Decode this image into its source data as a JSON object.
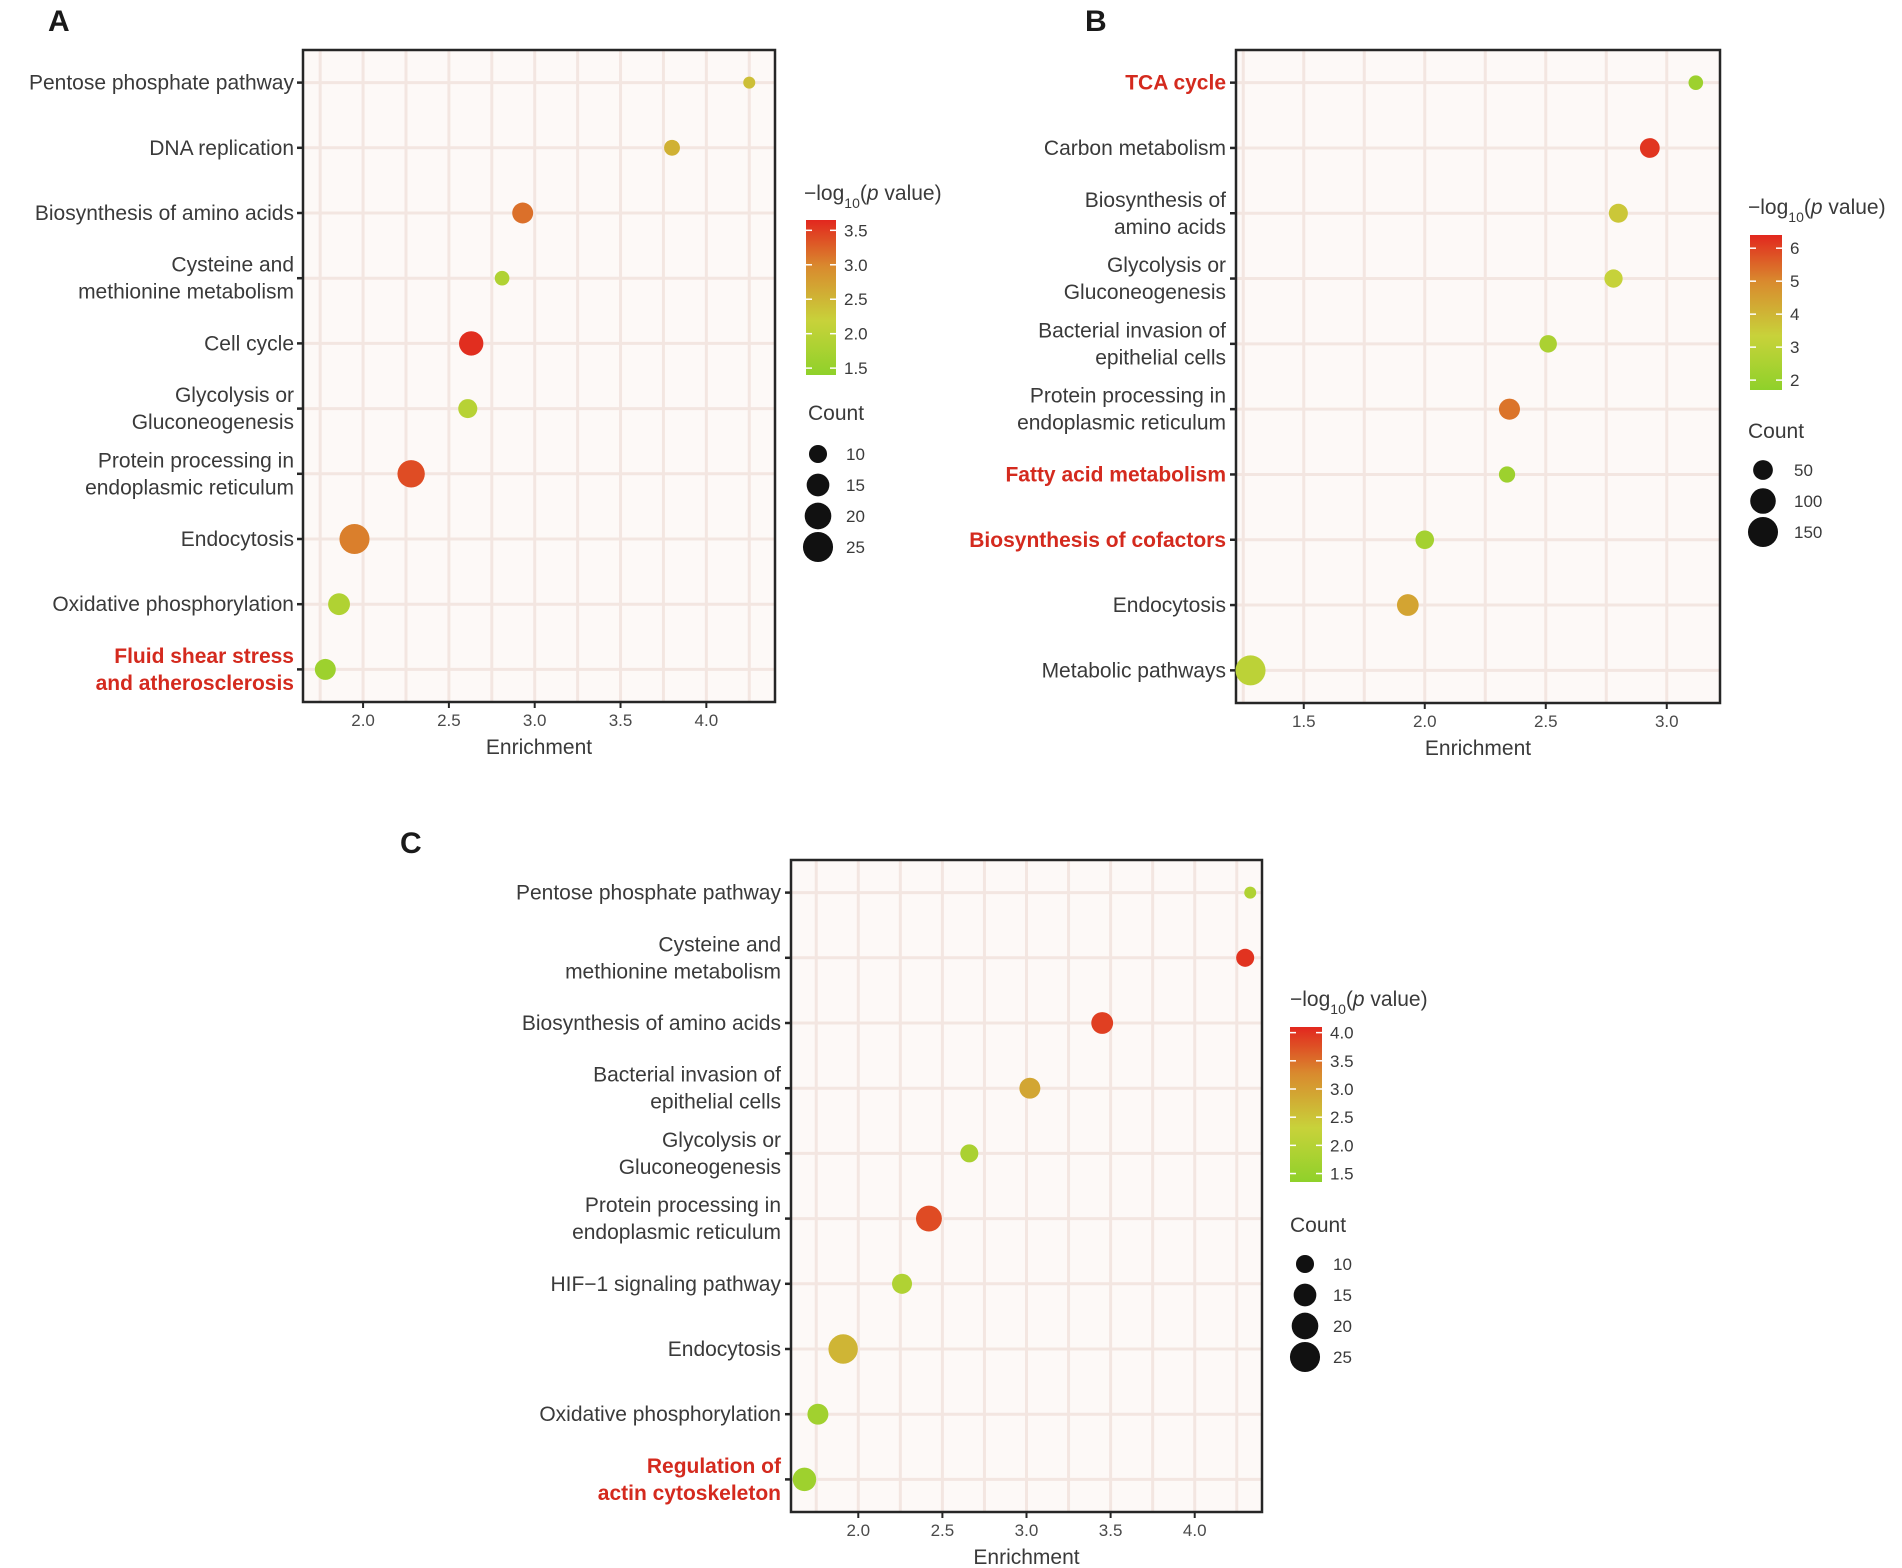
{
  "colors": {
    "panel_bg": "#fdf9f7",
    "grid": "#f3e6e1",
    "frame": "#262626",
    "highlight_text": "#d42a1e",
    "gradient_low": "#8fd12a",
    "gradient_mid_low": "#c8d23a",
    "gradient_mid_high": "#d98a2e",
    "gradient_high": "#e2271e",
    "count_marker": "#111111"
  },
  "chart_data": [
    {
      "panel": "A",
      "type": "scatter",
      "xlabel": "Enrichment",
      "xlim": [
        1.65,
        4.4
      ],
      "xticks": [
        2.0,
        2.5,
        3.0,
        3.5,
        4.0
      ],
      "xtick_labels": [
        "2.0",
        "2.5",
        "3.0",
        "3.5",
        "4.0"
      ],
      "color_legend": {
        "title_prefix": "−log",
        "title_sub": "10",
        "title_open": "(",
        "title_p": "p",
        "title_suffix": " value)",
        "range": [
          1.4,
          3.65
        ],
        "ticks": [
          1.5,
          2.0,
          2.5,
          3.0,
          3.5
        ],
        "labels": [
          "1.5",
          "2.0",
          "2.5",
          "3.0",
          "3.5"
        ]
      },
      "size_legend": {
        "title": "Count",
        "title_bold": true,
        "range": [
          5,
          28
        ],
        "values": [
          10,
          15,
          20,
          25
        ],
        "labels": [
          "10",
          "15",
          "20",
          "25"
        ]
      },
      "terms": [
        {
          "label": [
            "Pentose phosphate pathway"
          ],
          "enrichment": 4.25,
          "neg_log10_p": 2.4,
          "count": 5,
          "highlight": false
        },
        {
          "label": [
            "DNA replication"
          ],
          "enrichment": 3.8,
          "neg_log10_p": 2.55,
          "count": 8,
          "highlight": false
        },
        {
          "label": [
            "Biosynthesis of amino acids"
          ],
          "enrichment": 2.93,
          "neg_log10_p": 3.15,
          "count": 13,
          "highlight": false
        },
        {
          "label": [
            "Cysteine and",
            "methionine metabolism"
          ],
          "enrichment": 2.81,
          "neg_log10_p": 1.85,
          "count": 7,
          "highlight": false
        },
        {
          "label": [
            "Cell cycle"
          ],
          "enrichment": 2.63,
          "neg_log10_p": 3.6,
          "count": 17,
          "highlight": false
        },
        {
          "label": [
            "Glycolysis or",
            "Gluconeogenesis"
          ],
          "enrichment": 2.61,
          "neg_log10_p": 1.95,
          "count": 11,
          "highlight": false
        },
        {
          "label": [
            "Protein processing in",
            "endoplasmic reticulum"
          ],
          "enrichment": 2.28,
          "neg_log10_p": 3.4,
          "count": 21,
          "highlight": false
        },
        {
          "label": [
            "Endocytosis"
          ],
          "enrichment": 1.95,
          "neg_log10_p": 3.05,
          "count": 25,
          "highlight": false
        },
        {
          "label": [
            "Oxidative phosphorylation"
          ],
          "enrichment": 1.86,
          "neg_log10_p": 1.85,
          "count": 14,
          "highlight": false
        },
        {
          "label": [
            "Fluid shear stress",
            "and atherosclerosis"
          ],
          "enrichment": 1.78,
          "neg_log10_p": 1.6,
          "count": 13,
          "highlight": true
        }
      ]
    },
    {
      "panel": "B",
      "type": "scatter",
      "xlabel": "Enrichment",
      "xlim": [
        1.22,
        3.22
      ],
      "xticks": [
        1.5,
        2.0,
        2.5,
        3.0
      ],
      "xtick_labels": [
        "1.5",
        "2.0",
        "2.5",
        "3.0"
      ],
      "color_legend": {
        "title_prefix": "−log",
        "title_sub": "10",
        "title_open": "(",
        "title_p": "p",
        "title_suffix": " value)",
        "range": [
          1.7,
          6.4
        ],
        "ticks": [
          2,
          3,
          4,
          5,
          6
        ],
        "labels": [
          "2",
          "3",
          "4",
          "5",
          "6"
        ]
      },
      "size_legend": {
        "title": "Count",
        "title_bold": false,
        "range": [
          10,
          175
        ],
        "values": [
          50,
          100,
          150
        ],
        "labels": [
          "50",
          "100",
          "150"
        ]
      },
      "terms": [
        {
          "label": [
            "TCA cycle"
          ],
          "enrichment": 3.12,
          "neg_log10_p": 2.1,
          "count": 20,
          "highlight": true
        },
        {
          "label": [
            "Carbon metabolism"
          ],
          "enrichment": 2.93,
          "neg_log10_p": 6.2,
          "count": 50,
          "highlight": false
        },
        {
          "label": [
            "Biosynthesis of",
            "amino acids"
          ],
          "enrichment": 2.8,
          "neg_log10_p": 3.6,
          "count": 45,
          "highlight": false
        },
        {
          "label": [
            "Glycolysis or",
            "Gluconeogenesis"
          ],
          "enrichment": 2.78,
          "neg_log10_p": 3.3,
          "count": 40,
          "highlight": false
        },
        {
          "label": [
            "Bacterial invasion of",
            "epithelial cells"
          ],
          "enrichment": 2.51,
          "neg_log10_p": 2.5,
          "count": 35,
          "highlight": false
        },
        {
          "label": [
            "Protein processing in",
            "endoplasmic reticulum"
          ],
          "enrichment": 2.35,
          "neg_log10_p": 5.3,
          "count": 60,
          "highlight": false
        },
        {
          "label": [
            "Fatty acid metabolism"
          ],
          "enrichment": 2.34,
          "neg_log10_p": 2.1,
          "count": 28,
          "highlight": true
        },
        {
          "label": [
            "Biosynthesis of cofactors"
          ],
          "enrichment": 2.0,
          "neg_log10_p": 2.3,
          "count": 42,
          "highlight": true
        },
        {
          "label": [
            "Endocytosis"
          ],
          "enrichment": 1.93,
          "neg_log10_p": 4.4,
          "count": 65,
          "highlight": false
        },
        {
          "label": [
            "Metabolic pathways"
          ],
          "enrichment": 1.28,
          "neg_log10_p": 3.0,
          "count": 150,
          "highlight": false
        }
      ]
    },
    {
      "panel": "C",
      "type": "scatter",
      "xlabel": "Enrichment",
      "xlim": [
        1.6,
        4.4
      ],
      "xticks": [
        2.0,
        2.5,
        3.0,
        3.5,
        4.0
      ],
      "xtick_labels": [
        "2.0",
        "2.5",
        "3.0",
        "3.5",
        "4.0"
      ],
      "color_legend": {
        "title_prefix": "−log",
        "title_sub": "10",
        "title_open": "(",
        "title_p": "p",
        "title_suffix": " value)",
        "range": [
          1.35,
          4.1
        ],
        "ticks": [
          1.5,
          2.0,
          2.5,
          3.0,
          3.5,
          4.0
        ],
        "labels": [
          "1.5",
          "2.0",
          "2.5",
          "3.0",
          "3.5",
          "4.0"
        ]
      },
      "size_legend": {
        "title": "Count",
        "title_bold": false,
        "range": [
          5,
          28
        ],
        "values": [
          10,
          15,
          20,
          25
        ],
        "labels": [
          "10",
          "15",
          "20",
          "25"
        ]
      },
      "terms": [
        {
          "label": [
            "Pentose phosphate pathway"
          ],
          "enrichment": 4.33,
          "neg_log10_p": 1.9,
          "count": 5,
          "highlight": false
        },
        {
          "label": [
            "Cysteine and",
            "methionine metabolism"
          ],
          "enrichment": 4.3,
          "neg_log10_p": 4.0,
          "count": 10,
          "highlight": false
        },
        {
          "label": [
            "Biosynthesis of amino acids"
          ],
          "enrichment": 3.45,
          "neg_log10_p": 3.9,
          "count": 14,
          "highlight": false
        },
        {
          "label": [
            "Bacterial invasion of",
            "epithelial cells"
          ],
          "enrichment": 3.02,
          "neg_log10_p": 2.9,
          "count": 13,
          "highlight": false
        },
        {
          "label": [
            "Glycolysis or",
            "Gluconeogenesis"
          ],
          "enrichment": 2.66,
          "neg_log10_p": 1.8,
          "count": 10,
          "highlight": false
        },
        {
          "label": [
            "Protein processing in",
            "endoplasmic reticulum"
          ],
          "enrichment": 2.42,
          "neg_log10_p": 3.8,
          "count": 19,
          "highlight": false
        },
        {
          "label": [
            "HIF−1 signaling pathway"
          ],
          "enrichment": 2.26,
          "neg_log10_p": 1.9,
          "count": 12,
          "highlight": false
        },
        {
          "label": [
            "Endocytosis"
          ],
          "enrichment": 1.91,
          "neg_log10_p": 2.7,
          "count": 24,
          "highlight": false
        },
        {
          "label": [
            "Oxidative phosphorylation"
          ],
          "enrichment": 1.76,
          "neg_log10_p": 1.65,
          "count": 13,
          "highlight": false
        },
        {
          "label": [
            "Regulation of",
            "actin cytoskeleton"
          ],
          "enrichment": 1.68,
          "neg_log10_p": 1.6,
          "count": 16,
          "highlight": true
        }
      ]
    }
  ]
}
